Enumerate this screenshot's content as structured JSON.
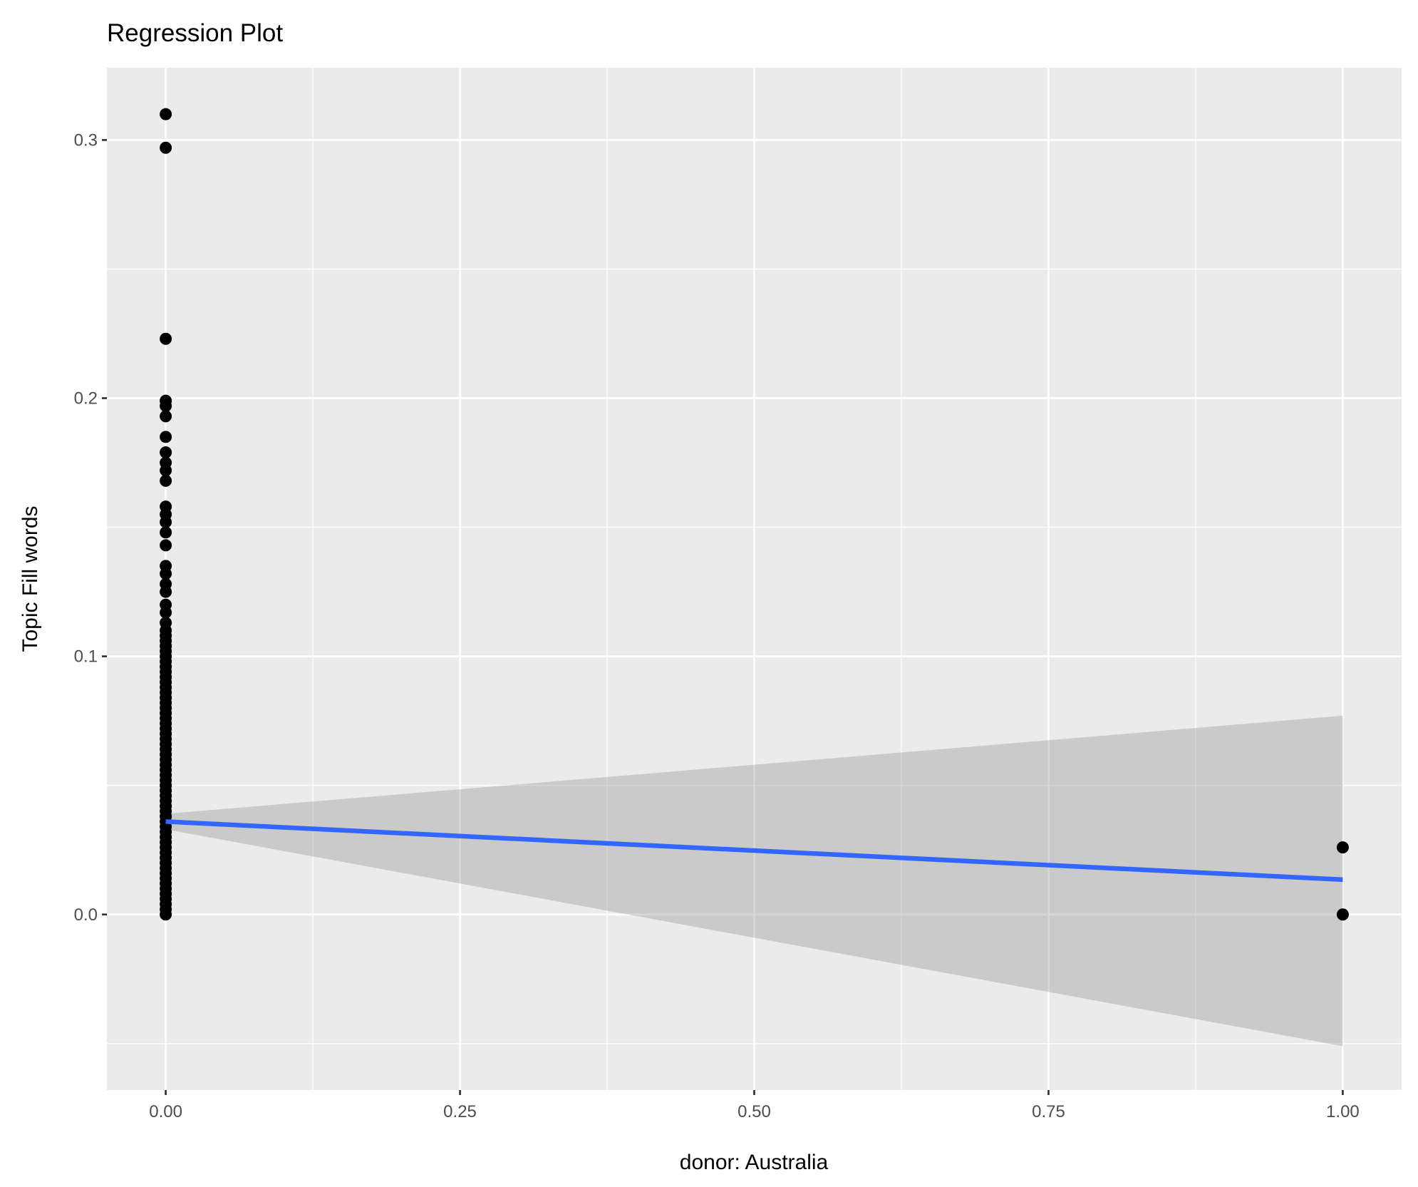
{
  "chart_data": {
    "type": "scatter",
    "title": "Regression Plot",
    "xlabel": "donor: Australia",
    "ylabel": "Topic Fill words",
    "xlim": [
      -0.05,
      1.05
    ],
    "ylim": [
      -0.068,
      0.328
    ],
    "x_ticks": [
      0,
      0.25,
      0.5,
      0.75,
      1
    ],
    "x_tick_labels": [
      "0.00",
      "0.25",
      "0.50",
      "0.75",
      "1.00"
    ],
    "y_ticks": [
      0,
      0.1,
      0.2,
      0.3
    ],
    "y_tick_labels": [
      "0.0",
      "0.1",
      "0.2",
      "0.3"
    ],
    "grid": true,
    "legend": "none",
    "colors": {
      "panel": "#EBEBEB",
      "grid": "#FFFFFF",
      "points": "#000000",
      "line": "#3366FF",
      "ribbon": "#C8C8C8",
      "tick_text": "#4D4D4D"
    },
    "points": {
      "x0_values": [
        0.31,
        0.297,
        0.223,
        0.199,
        0.197,
        0.193,
        0.185,
        0.179,
        0.175,
        0.172,
        0.168,
        0.158,
        0.155,
        0.152,
        0.148,
        0.143,
        0.135,
        0.132,
        0.128,
        0.125,
        0.12,
        0.117,
        0.113,
        0.11,
        0.108,
        0.106,
        0.104,
        0.102,
        0.1,
        0.098,
        0.096,
        0.094,
        0.092,
        0.09,
        0.088,
        0.086,
        0.084,
        0.082,
        0.08,
        0.078,
        0.076,
        0.074,
        0.072,
        0.07,
        0.068,
        0.066,
        0.064,
        0.062,
        0.06,
        0.058,
        0.056,
        0.054,
        0.052,
        0.05,
        0.048,
        0.046,
        0.044,
        0.042,
        0.04,
        0.038,
        0.036,
        0.034,
        0.032,
        0.03,
        0.028,
        0.026,
        0.024,
        0.022,
        0.02,
        0.018,
        0.016,
        0.014,
        0.012,
        0.01,
        0.008,
        0.006,
        0.004,
        0.002,
        0.0
      ],
      "x1_values": [
        0.026,
        0.0
      ]
    },
    "regression": {
      "x": [
        0,
        1
      ],
      "fit": [
        0.036,
        0.0135
      ],
      "ci_lower": [
        0.033,
        -0.051
      ],
      "ci_upper": [
        0.039,
        0.077
      ]
    }
  }
}
